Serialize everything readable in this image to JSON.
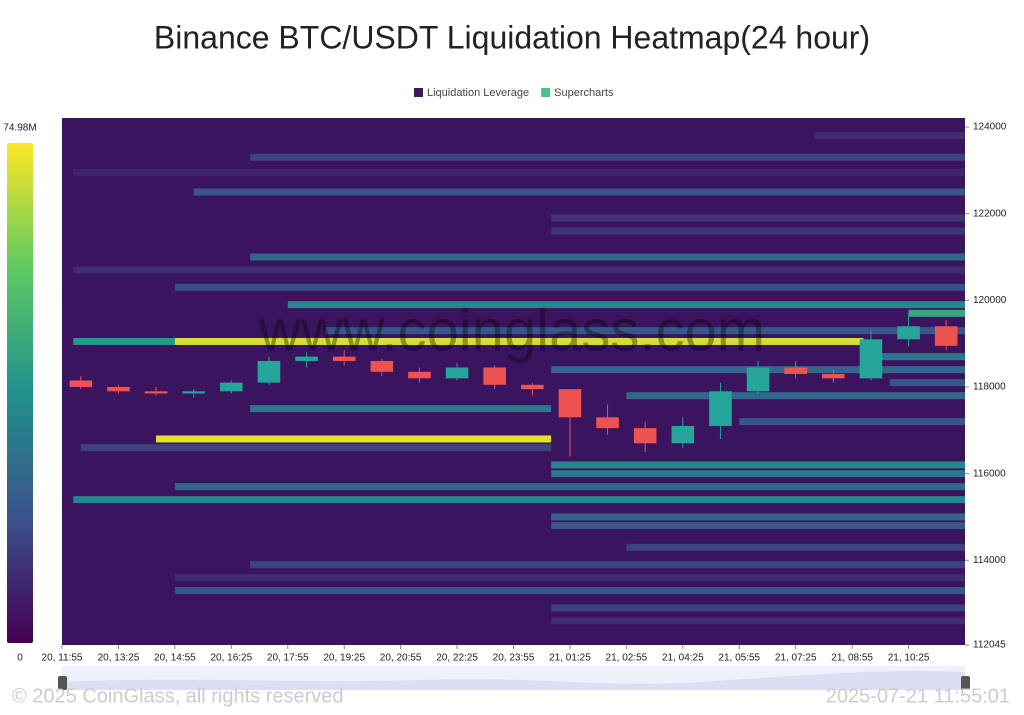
{
  "chart_data": {
    "type": "heatmap",
    "title": "Binance BTC/USDT Liquidation Heatmap(24 hour)",
    "legend": [
      {
        "name": "Liquidation Leverage",
        "color": "#3b1b5c"
      },
      {
        "name": "Supercharts",
        "color": "#4cc38a"
      }
    ],
    "watermark": "www.coinglass.com",
    "footer_left": "© 2025 CoinGlass, all rights reserved",
    "footer_right": "2025-07-21 11:55:01",
    "colorbar": {
      "min": 0,
      "max": {
        "value": 74.98,
        "label": "74.98M"
      }
    },
    "xlim": [
      0,
      24
    ],
    "xticks": [
      {
        "value": 0,
        "label": "20, 11:55"
      },
      {
        "value": 1.5,
        "label": "20, 13:25"
      },
      {
        "value": 3,
        "label": "20, 14:55"
      },
      {
        "value": 4.5,
        "label": "20, 16:25"
      },
      {
        "value": 6,
        "label": "20, 17:55"
      },
      {
        "value": 7.5,
        "label": "20, 19:25"
      },
      {
        "value": 9,
        "label": "20, 20:55"
      },
      {
        "value": 10.5,
        "label": "20, 22:25"
      },
      {
        "value": 12,
        "label": "20, 23:55"
      },
      {
        "value": 13.5,
        "label": "21, 01:25"
      },
      {
        "value": 15,
        "label": "21, 02:55"
      },
      {
        "value": 16.5,
        "label": "21, 04:25"
      },
      {
        "value": 18,
        "label": "21, 05:55"
      },
      {
        "value": 19.5,
        "label": "21, 07:25"
      },
      {
        "value": 21,
        "label": "21, 08:55"
      },
      {
        "value": 22.5,
        "label": "21, 10:25"
      }
    ],
    "ylim": [
      112045,
      124000
    ],
    "yticks": [
      112045,
      114000,
      116000,
      118000,
      120000,
      122000,
      124000
    ],
    "bands": {
      "price": [
        123800,
        123300,
        122950,
        122500,
        121900,
        121600,
        121000,
        120700,
        120300,
        119900,
        119700,
        119300,
        119050,
        119050,
        118700,
        118400,
        118100,
        117800,
        117500,
        117200,
        116800,
        116600,
        116200,
        116000,
        115700,
        115400,
        115000,
        114800,
        114300,
        113900,
        113600,
        113300,
        112900,
        112600
      ],
      "start": [
        20,
        5,
        0.3,
        3.5,
        13,
        13,
        5,
        0.3,
        3,
        6,
        22.5,
        7,
        0.3,
        3,
        21.3,
        13,
        22,
        15,
        5,
        18,
        2.5,
        0.5,
        13,
        13,
        3,
        0.3,
        13,
        13,
        15,
        5,
        3,
        3,
        13,
        13
      ],
      "end": [
        24,
        24,
        24,
        24,
        24,
        24,
        24,
        24,
        24,
        24,
        24,
        24,
        3,
        21.3,
        24,
        24,
        24,
        24,
        13,
        24,
        13,
        13,
        24,
        24,
        24,
        24,
        24,
        24,
        24,
        24,
        24,
        24,
        24,
        24
      ],
      "values": [
        10,
        15,
        8,
        20,
        12,
        12,
        25,
        10,
        18,
        35,
        45,
        20,
        40,
        70,
        30,
        25,
        20,
        25,
        30,
        20,
        72,
        15,
        35,
        30,
        25,
        35,
        25,
        20,
        15,
        15,
        10,
        20,
        15,
        10
      ]
    },
    "candles": {
      "x": [
        0.5,
        1.5,
        2.5,
        3.5,
        4.5,
        5.5,
        6.5,
        7.5,
        8.5,
        9.5,
        10.5,
        11.5,
        12.5,
        13.5,
        14.5,
        15.5,
        16.5,
        17.5,
        18.5,
        19.5,
        20.5,
        21.5,
        22.5,
        23.5
      ],
      "open": [
        118150,
        118000,
        117900,
        117850,
        117900,
        118100,
        118600,
        118700,
        118600,
        118350,
        118200,
        118450,
        118050,
        117950,
        117300,
        117050,
        116700,
        117100,
        117900,
        118450,
        118300,
        118200,
        119100,
        119400
      ],
      "high": [
        118250,
        118050,
        118000,
        117950,
        118150,
        118700,
        118800,
        118850,
        118650,
        118450,
        118550,
        118500,
        118100,
        117950,
        117600,
        117200,
        117300,
        118100,
        118600,
        118600,
        118400,
        119300,
        119700,
        119550
      ],
      "low": [
        117950,
        117850,
        117800,
        117750,
        117850,
        118050,
        118450,
        118500,
        118250,
        118100,
        118150,
        117950,
        117800,
        116400,
        116900,
        116500,
        116600,
        116800,
        117850,
        118200,
        118100,
        118150,
        118950,
        118850
      ],
      "close": [
        118000,
        117900,
        117850,
        117900,
        118100,
        118600,
        118700,
        118600,
        118350,
        118200,
        118450,
        118050,
        117950,
        117300,
        117050,
        116700,
        117100,
        117900,
        118450,
        118300,
        118200,
        119100,
        119400,
        118950
      ]
    }
  }
}
